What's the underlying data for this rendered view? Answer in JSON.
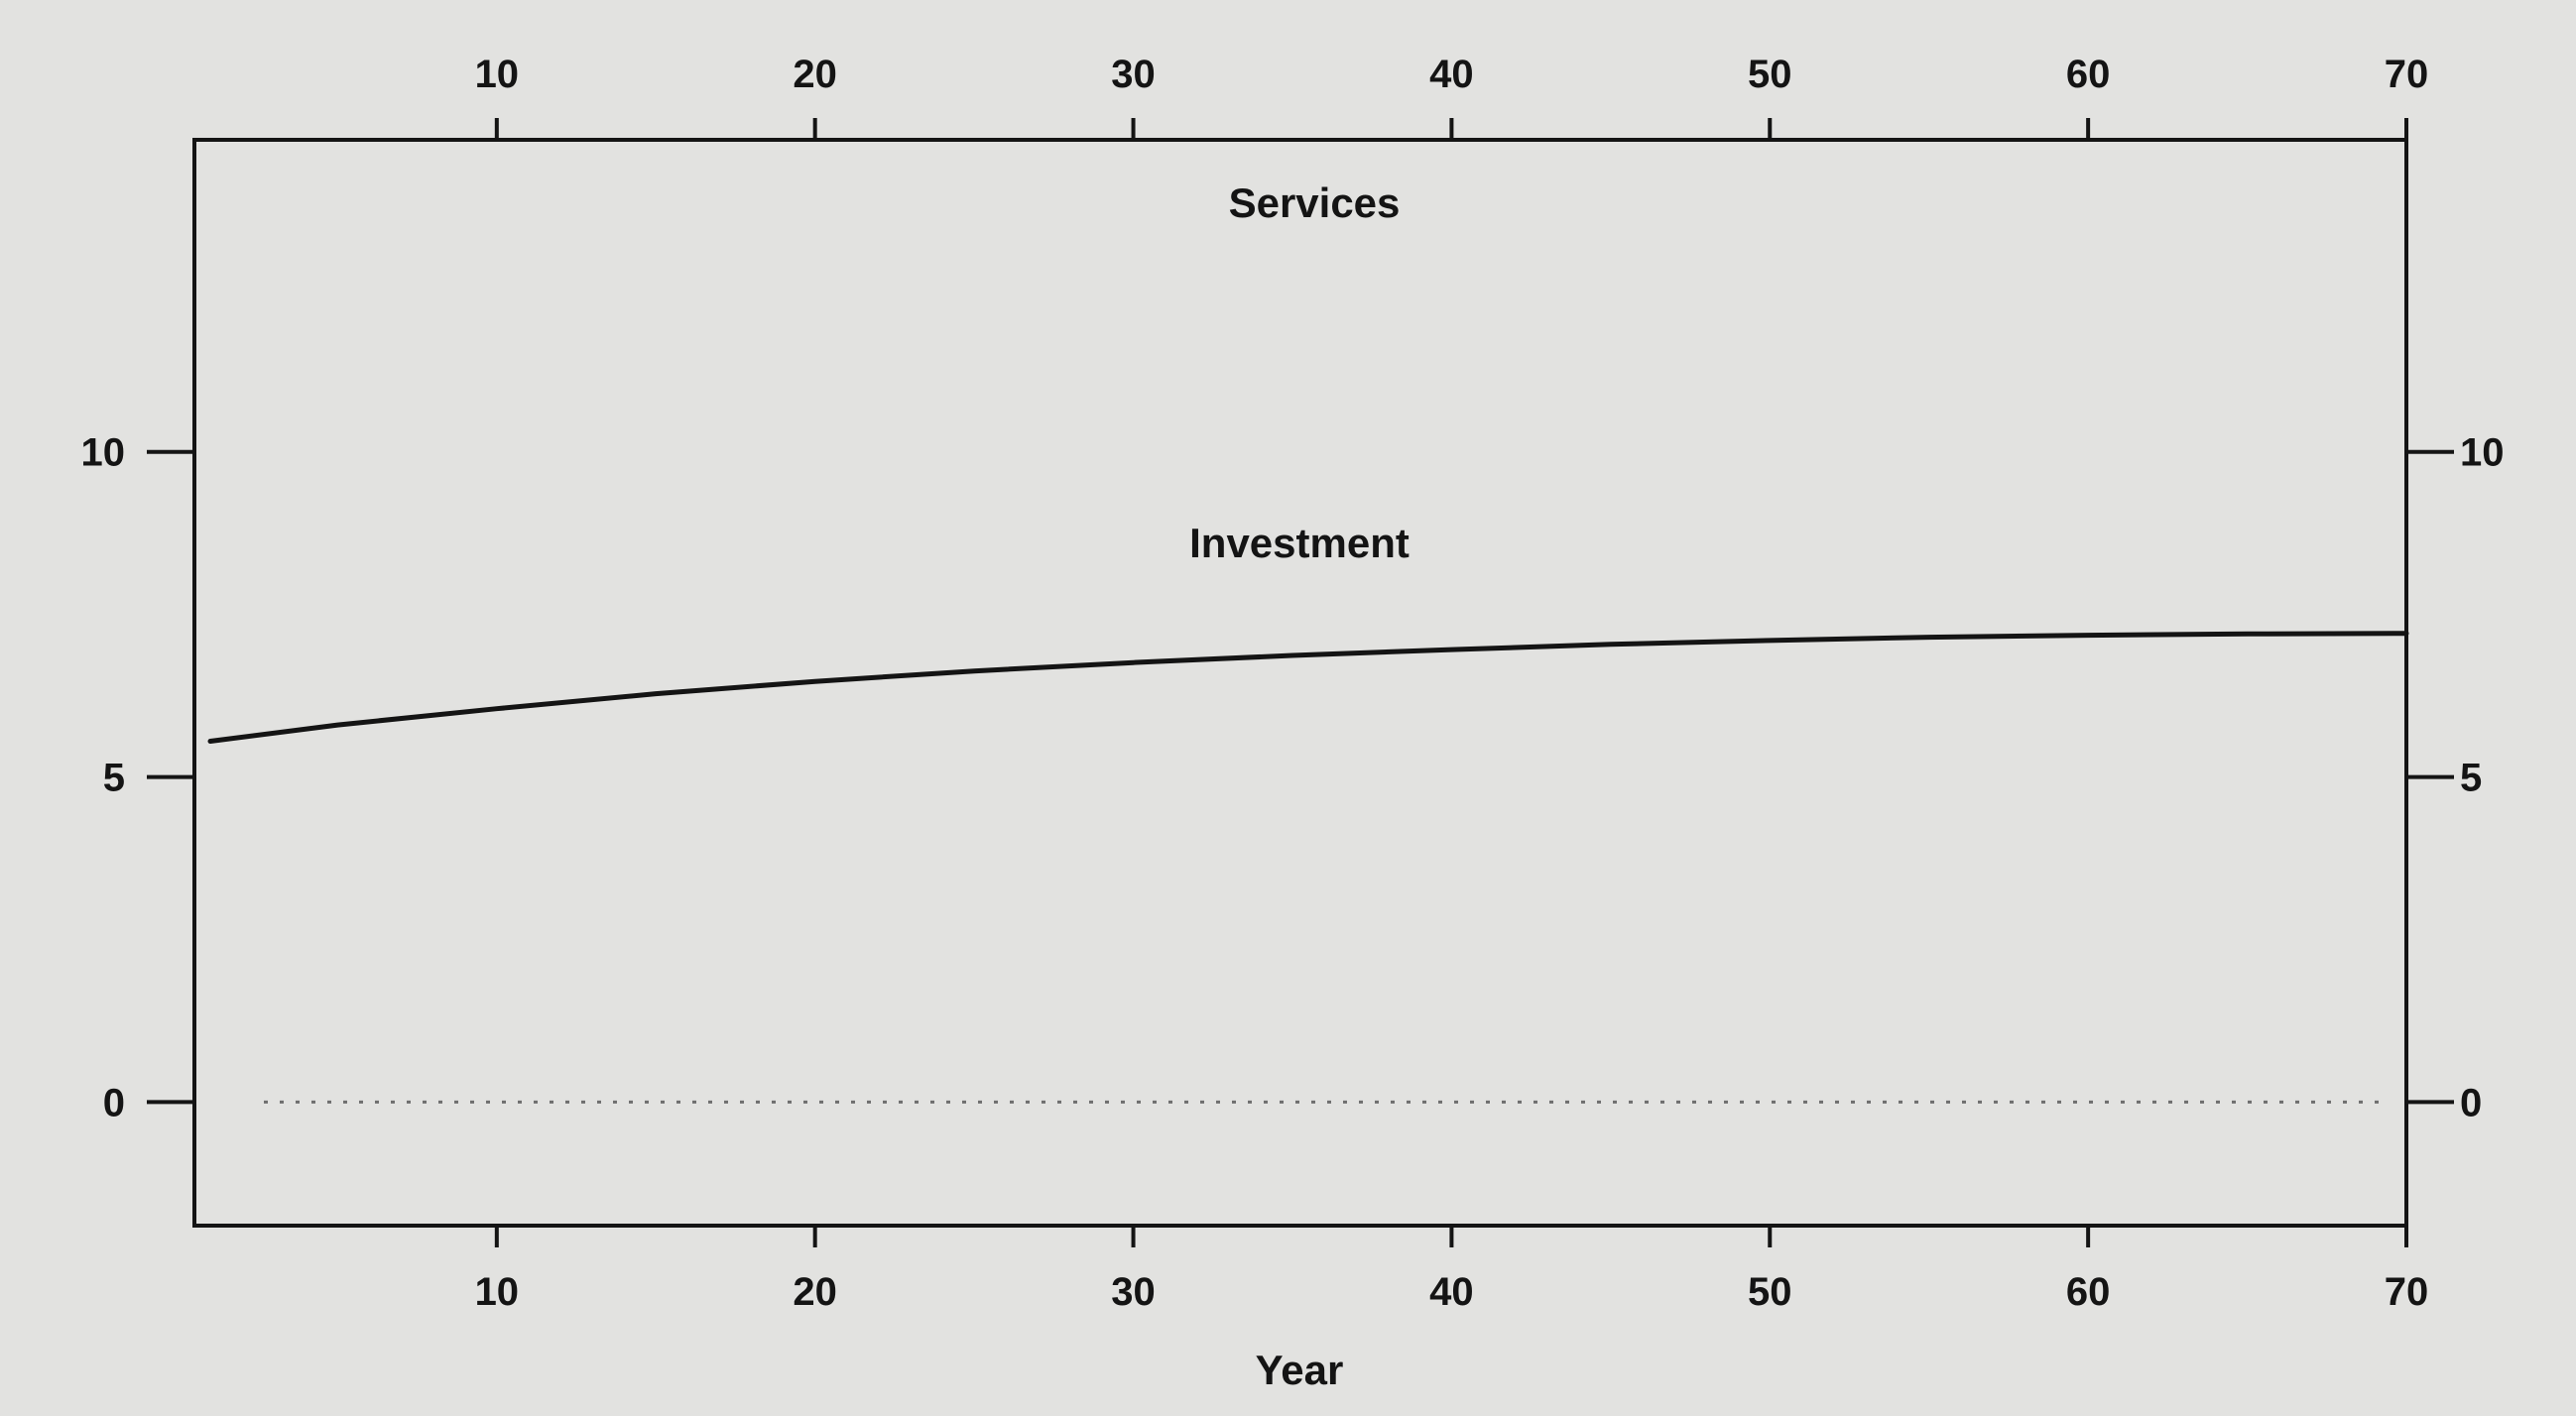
{
  "chart_data": {
    "type": "line",
    "title": "Services",
    "xlabel": "Year",
    "ylabel": "",
    "xlim": [
      0.5,
      70
    ],
    "ylim": [
      -1.9,
      14.8
    ],
    "x_ticks": [
      10,
      20,
      30,
      40,
      50,
      60,
      70
    ],
    "y_ticks": [
      0,
      5,
      10
    ],
    "x_tick_labels": [
      "10",
      "20",
      "30",
      "40",
      "50",
      "60",
      "70"
    ],
    "y_tick_labels": [
      "0",
      "5",
      "10"
    ],
    "grid": false,
    "reference_line": {
      "y": 0,
      "style": "dotted"
    },
    "series": [
      {
        "name": "Investment",
        "x": [
          1,
          5,
          10,
          15,
          20,
          25,
          30,
          35,
          40,
          45,
          50,
          55,
          60,
          65,
          70
        ],
        "y": [
          5.55,
          5.8,
          6.05,
          6.28,
          6.47,
          6.63,
          6.76,
          6.87,
          6.96,
          7.04,
          7.1,
          7.15,
          7.18,
          7.2,
          7.21
        ]
      }
    ]
  }
}
